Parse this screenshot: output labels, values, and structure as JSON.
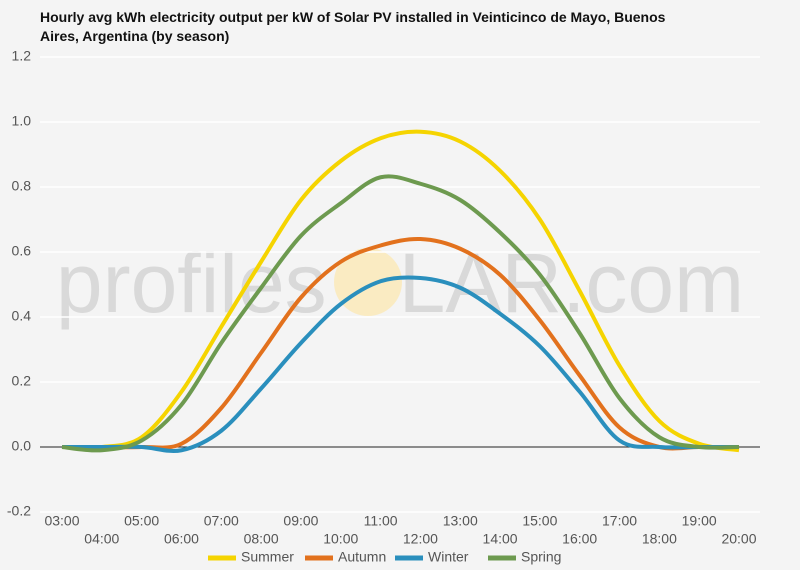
{
  "chart_data": {
    "type": "line",
    "title": "Hourly avg kWh electricity output per kW of Solar PV installed in Veinticinco de Mayo, Buenos Aires, Argentina (by season)",
    "watermark": [
      "profiles",
      "LAR.com"
    ],
    "categories": [
      "03:00",
      "04:00",
      "05:00",
      "06:00",
      "07:00",
      "08:00",
      "09:00",
      "10:00",
      "11:00",
      "12:00",
      "13:00",
      "14:00",
      "15:00",
      "16:00",
      "17:00",
      "18:00",
      "19:00",
      "20:00"
    ],
    "series": [
      {
        "name": "Summer",
        "color": "#f5d400",
        "values": [
          0,
          0,
          0.03,
          0.17,
          0.37,
          0.57,
          0.76,
          0.88,
          0.95,
          0.97,
          0.94,
          0.85,
          0.7,
          0.48,
          0.25,
          0.08,
          0.01,
          -0.01
        ]
      },
      {
        "name": "Autumn",
        "color": "#e2711d",
        "values": [
          0,
          0,
          0,
          0.01,
          0.12,
          0.29,
          0.46,
          0.57,
          0.62,
          0.64,
          0.61,
          0.53,
          0.39,
          0.22,
          0.06,
          0,
          0,
          0
        ]
      },
      {
        "name": "Winter",
        "color": "#2a8fbd",
        "values": [
          0,
          0,
          0,
          -0.01,
          0.05,
          0.18,
          0.32,
          0.44,
          0.51,
          0.52,
          0.49,
          0.41,
          0.31,
          0.17,
          0.02,
          0,
          0,
          0
        ]
      },
      {
        "name": "Spring",
        "color": "#6d9a4f",
        "values": [
          0,
          -0.01,
          0.02,
          0.13,
          0.32,
          0.49,
          0.65,
          0.75,
          0.83,
          0.81,
          0.76,
          0.66,
          0.53,
          0.35,
          0.15,
          0.03,
          0,
          0
        ]
      }
    ],
    "ylim": [
      -0.2,
      1.2
    ],
    "yticks": [
      -0.2,
      {
        "value": 0,
        "label": "0.0"
      },
      0.2,
      0.4,
      0.6,
      0.8,
      {
        "value": 1,
        "label": "1.0"
      },
      1.2
    ],
    "grid": true,
    "legend": "bottom"
  }
}
